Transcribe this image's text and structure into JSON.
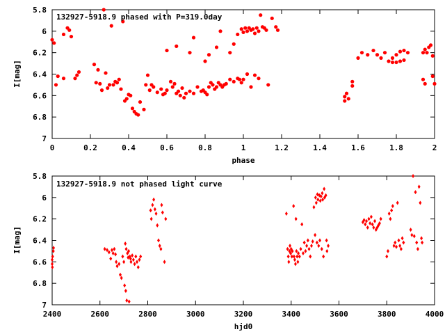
{
  "chart_data": [
    {
      "type": "scatter",
      "title": "132927-5918.9 phased with P=319.0day",
      "xlabel": "phase",
      "ylabel": "I[mag]",
      "xlim": [
        0,
        2
      ],
      "ylim": [
        5.8,
        7.0
      ],
      "y_inverted": true,
      "grid": false,
      "x_ticks": [
        "0",
        "0.2",
        "0.4",
        "0.6",
        "0.8",
        "1",
        "1.2",
        "1.4",
        "1.6",
        "1.8",
        "2"
      ],
      "y_ticks": [
        "5.8",
        "6",
        "6.2",
        "6.4",
        "6.6",
        "6.8",
        "7"
      ],
      "marker_color": "#ff0000",
      "marker": "filled-circle",
      "points": [
        [
          0.0,
          6.08
        ],
        [
          0.01,
          6.11
        ],
        [
          0.02,
          6.5
        ],
        [
          0.03,
          6.42
        ],
        [
          0.06,
          6.44
        ],
        [
          0.06,
          6.03
        ],
        [
          0.08,
          5.97
        ],
        [
          0.09,
          5.99
        ],
        [
          0.1,
          6.05
        ],
        [
          0.12,
          6.44
        ],
        [
          0.13,
          6.41
        ],
        [
          0.14,
          6.38
        ],
        [
          0.22,
          6.31
        ],
        [
          0.23,
          6.48
        ],
        [
          0.24,
          6.36
        ],
        [
          0.25,
          6.49
        ],
        [
          0.26,
          6.55
        ],
        [
          0.27,
          5.8
        ],
        [
          0.28,
          6.39
        ],
        [
          0.29,
          6.53
        ],
        [
          0.3,
          6.5
        ],
        [
          0.31,
          5.95
        ],
        [
          0.32,
          6.5
        ],
        [
          0.33,
          6.47
        ],
        [
          0.34,
          6.48
        ],
        [
          0.35,
          6.45
        ],
        [
          0.36,
          6.54
        ],
        [
          0.37,
          5.91
        ],
        [
          0.38,
          6.65
        ],
        [
          0.39,
          6.63
        ],
        [
          0.4,
          6.59
        ],
        [
          0.41,
          6.6
        ],
        [
          0.42,
          6.72
        ],
        [
          0.43,
          6.75
        ],
        [
          0.44,
          6.77
        ],
        [
          0.45,
          6.78
        ],
        [
          0.46,
          6.66
        ],
        [
          0.48,
          6.73
        ],
        [
          0.49,
          6.5
        ],
        [
          0.5,
          6.41
        ],
        [
          0.51,
          6.55
        ],
        [
          0.52,
          6.5
        ],
        [
          0.53,
          6.52
        ],
        [
          0.55,
          6.57
        ],
        [
          0.57,
          6.54
        ],
        [
          0.58,
          6.59
        ],
        [
          0.59,
          6.58
        ],
        [
          0.6,
          6.55
        ],
        [
          0.62,
          6.47
        ],
        [
          0.63,
          6.52
        ],
        [
          0.64,
          6.49
        ],
        [
          0.65,
          6.58
        ],
        [
          0.66,
          6.56
        ],
        [
          0.67,
          6.6
        ],
        [
          0.68,
          6.53
        ],
        [
          0.69,
          6.62
        ],
        [
          0.7,
          6.58
        ],
        [
          0.72,
          6.56
        ],
        [
          0.74,
          6.58
        ],
        [
          0.76,
          6.52
        ],
        [
          0.78,
          6.56
        ],
        [
          0.79,
          6.55
        ],
        [
          0.8,
          6.57
        ],
        [
          0.81,
          6.59
        ],
        [
          0.82,
          6.52
        ],
        [
          0.83,
          6.48
        ],
        [
          0.84,
          6.5
        ],
        [
          0.85,
          6.54
        ],
        [
          0.86,
          6.52
        ],
        [
          0.87,
          6.48
        ],
        [
          0.88,
          6.5
        ],
        [
          0.89,
          6.52
        ],
        [
          0.9,
          6.5
        ],
        [
          0.91,
          6.49
        ],
        [
          0.93,
          6.45
        ],
        [
          0.95,
          6.47
        ],
        [
          0.97,
          6.44
        ],
        [
          0.98,
          6.45
        ],
        [
          0.99,
          6.48
        ],
        [
          1.0,
          6.45
        ],
        [
          1.02,
          6.4
        ],
        [
          1.04,
          6.52
        ],
        [
          1.06,
          6.41
        ],
        [
          1.08,
          6.44
        ],
        [
          0.86,
          6.15
        ],
        [
          0.88,
          6.0
        ],
        [
          0.8,
          6.28
        ],
        [
          0.82,
          6.22
        ],
        [
          0.93,
          6.2
        ],
        [
          0.95,
          6.12
        ],
        [
          0.97,
          6.03
        ],
        [
          0.99,
          5.98
        ],
        [
          1.0,
          6.01
        ],
        [
          1.01,
          5.97
        ],
        [
          1.02,
          6.0
        ],
        [
          1.03,
          5.97
        ],
        [
          1.04,
          5.99
        ],
        [
          1.05,
          5.98
        ],
        [
          1.06,
          6.02
        ],
        [
          1.07,
          5.97
        ],
        [
          1.08,
          6.0
        ],
        [
          1.09,
          5.85
        ],
        [
          1.1,
          5.96
        ],
        [
          1.11,
          5.97
        ],
        [
          1.12,
          5.99
        ],
        [
          1.13,
          6.5
        ],
        [
          1.15,
          5.88
        ],
        [
          1.17,
          5.96
        ],
        [
          1.18,
          5.99
        ],
        [
          0.6,
          6.18
        ],
        [
          0.65,
          6.14
        ],
        [
          0.72,
          6.2
        ],
        [
          0.74,
          6.06
        ],
        [
          1.53,
          6.65
        ],
        [
          1.53,
          6.61
        ],
        [
          1.54,
          6.58
        ],
        [
          1.55,
          6.63
        ],
        [
          1.57,
          6.47
        ],
        [
          1.57,
          6.51
        ],
        [
          1.6,
          6.25
        ],
        [
          1.62,
          6.2
        ],
        [
          1.65,
          6.22
        ],
        [
          1.68,
          6.18
        ],
        [
          1.7,
          6.22
        ],
        [
          1.72,
          6.25
        ],
        [
          1.74,
          6.2
        ],
        [
          1.76,
          6.28
        ],
        [
          1.78,
          6.25
        ],
        [
          1.8,
          6.22
        ],
        [
          1.82,
          6.19
        ],
        [
          1.84,
          6.18
        ],
        [
          1.86,
          6.2
        ],
        [
          1.78,
          6.29
        ],
        [
          1.8,
          6.29
        ],
        [
          1.82,
          6.28
        ],
        [
          1.84,
          6.27
        ],
        [
          1.94,
          6.2
        ],
        [
          1.95,
          6.17
        ],
        [
          1.96,
          6.2
        ],
        [
          1.97,
          6.15
        ],
        [
          1.99,
          6.23
        ],
        [
          1.94,
          6.45
        ],
        [
          1.95,
          6.49
        ],
        [
          2.0,
          6.49
        ],
        [
          1.99,
          6.42
        ],
        [
          1.98,
          6.13
        ]
      ]
    },
    {
      "type": "scatter",
      "title": "132927-5918.9 not phased light curve",
      "xlabel": "hjd0",
      "ylabel": "I[mag]",
      "xlim": [
        2400,
        4000
      ],
      "ylim": [
        5.8,
        7.0
      ],
      "y_inverted": true,
      "grid": false,
      "x_ticks": [
        "2400",
        "2600",
        "2800",
        "3000",
        "3200",
        "3400",
        "3600",
        "3800",
        "4000"
      ],
      "y_ticks": [
        "5.8",
        "6",
        "6.2",
        "6.4",
        "6.6",
        "6.8",
        "7"
      ],
      "marker_color": "#ff0000",
      "marker": "diamond",
      "points": [
        [
          2400,
          6.58
        ],
        [
          2400,
          6.62
        ],
        [
          2401,
          6.65
        ],
        [
          2402,
          6.55
        ],
        [
          2405,
          6.5
        ],
        [
          2406,
          6.47
        ],
        [
          2620,
          6.48
        ],
        [
          2630,
          6.49
        ],
        [
          2638,
          6.51
        ],
        [
          2645,
          6.57
        ],
        [
          2650,
          6.49
        ],
        [
          2655,
          6.52
        ],
        [
          2660,
          6.48
        ],
        [
          2665,
          6.53
        ],
        [
          2668,
          6.6
        ],
        [
          2672,
          6.64
        ],
        [
          2680,
          6.62
        ],
        [
          2685,
          6.72
        ],
        [
          2690,
          6.75
        ],
        [
          2695,
          6.55
        ],
        [
          2700,
          6.6
        ],
        [
          2703,
          6.82
        ],
        [
          2706,
          6.43
        ],
        [
          2708,
          6.87
        ],
        [
          2710,
          6.48
        ],
        [
          2712,
          6.96
        ],
        [
          2715,
          6.52
        ],
        [
          2718,
          6.56
        ],
        [
          2720,
          6.5
        ],
        [
          2722,
          6.97
        ],
        [
          2725,
          6.55
        ],
        [
          2728,
          6.57
        ],
        [
          2730,
          6.6
        ],
        [
          2735,
          6.54
        ],
        [
          2740,
          6.58
        ],
        [
          2745,
          6.62
        ],
        [
          2750,
          6.55
        ],
        [
          2755,
          6.6
        ],
        [
          2760,
          6.65
        ],
        [
          2765,
          6.58
        ],
        [
          2770,
          6.55
        ],
        [
          2812,
          6.12
        ],
        [
          2815,
          6.2
        ],
        [
          2820,
          6.07
        ],
        [
          2825,
          6.02
        ],
        [
          2830,
          6.11
        ],
        [
          2835,
          6.15
        ],
        [
          2840,
          6.26
        ],
        [
          2845,
          6.4
        ],
        [
          2850,
          6.45
        ],
        [
          2855,
          6.48
        ],
        [
          2858,
          6.07
        ],
        [
          2862,
          6.14
        ],
        [
          2870,
          6.6
        ],
        [
          2875,
          6.2
        ],
        [
          3380,
          6.15
        ],
        [
          3385,
          6.48
        ],
        [
          3388,
          6.55
        ],
        [
          3390,
          6.6
        ],
        [
          3393,
          6.5
        ],
        [
          3395,
          6.45
        ],
        [
          3398,
          6.52
        ],
        [
          3400,
          6.48
        ],
        [
          3403,
          6.55
        ],
        [
          3405,
          6.5
        ],
        [
          3410,
          6.08
        ],
        [
          3412,
          6.55
        ],
        [
          3415,
          6.58
        ],
        [
          3418,
          6.62
        ],
        [
          3420,
          6.2
        ],
        [
          3422,
          6.5
        ],
        [
          3425,
          6.55
        ],
        [
          3428,
          6.6
        ],
        [
          3430,
          6.52
        ],
        [
          3435,
          6.55
        ],
        [
          3440,
          6.48
        ],
        [
          3445,
          6.25
        ],
        [
          3450,
          6.52
        ],
        [
          3455,
          6.42
        ],
        [
          3460,
          6.5
        ],
        [
          3465,
          6.45
        ],
        [
          3470,
          6.4
        ],
        [
          3475,
          6.48
        ],
        [
          3480,
          6.55
        ],
        [
          3485,
          6.45
        ],
        [
          3490,
          6.41
        ],
        [
          3495,
          6.09
        ],
        [
          3500,
          6.35
        ],
        [
          3502,
          6.0
        ],
        [
          3505,
          6.05
        ],
        [
          3508,
          6.42
        ],
        [
          3510,
          5.97
        ],
        [
          3512,
          6.02
        ],
        [
          3515,
          6.45
        ],
        [
          3518,
          5.98
        ],
        [
          3520,
          6.4
        ],
        [
          3522,
          6.03
        ],
        [
          3525,
          5.99
        ],
        [
          3528,
          6.48
        ],
        [
          3530,
          5.96
        ],
        [
          3532,
          6.02
        ],
        [
          3535,
          6.55
        ],
        [
          3538,
          5.92
        ],
        [
          3540,
          6.0
        ],
        [
          3545,
          5.98
        ],
        [
          3548,
          6.4
        ],
        [
          3550,
          6.5
        ],
        [
          3555,
          6.45
        ],
        [
          3700,
          6.23
        ],
        [
          3705,
          6.21
        ],
        [
          3710,
          6.25
        ],
        [
          3715,
          6.22
        ],
        [
          3720,
          6.28
        ],
        [
          3725,
          6.2
        ],
        [
          3730,
          6.24
        ],
        [
          3735,
          6.18
        ],
        [
          3740,
          6.25
        ],
        [
          3745,
          6.28
        ],
        [
          3750,
          6.22
        ],
        [
          3755,
          6.3
        ],
        [
          3760,
          6.28
        ],
        [
          3765,
          6.26
        ],
        [
          3770,
          6.24
        ],
        [
          3775,
          6.2
        ],
        [
          3800,
          6.55
        ],
        [
          3805,
          6.5
        ],
        [
          3810,
          6.15
        ],
        [
          3815,
          6.2
        ],
        [
          3820,
          6.12
        ],
        [
          3825,
          6.08
        ],
        [
          3830,
          6.45
        ],
        [
          3835,
          6.42
        ],
        [
          3840,
          6.46
        ],
        [
          3845,
          6.05
        ],
        [
          3850,
          6.4
        ],
        [
          3855,
          6.45
        ],
        [
          3860,
          6.48
        ],
        [
          3865,
          6.38
        ],
        [
          3870,
          6.42
        ],
        [
          3900,
          6.3
        ],
        [
          3905,
          6.35
        ],
        [
          3910,
          5.8
        ],
        [
          3915,
          6.36
        ],
        [
          3920,
          5.95
        ],
        [
          3925,
          6.42
        ],
        [
          3930,
          6.48
        ],
        [
          3935,
          5.9
        ],
        [
          3940,
          6.05
        ],
        [
          3945,
          6.38
        ],
        [
          3948,
          6.42
        ]
      ]
    }
  ]
}
